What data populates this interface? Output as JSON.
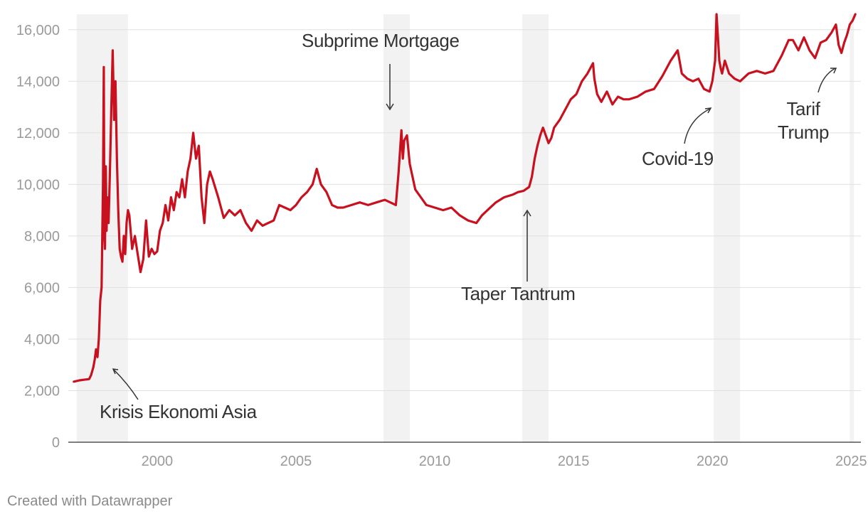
{
  "footer": {
    "credit": "Created with Datawrapper"
  },
  "colors": {
    "line": "#c8101e",
    "shade": "#f2f2f2",
    "grid": "#e0e0e0",
    "axis": "#333333",
    "tick_text": "#9a9a9a",
    "annotation_text": "#333333"
  },
  "chart_data": {
    "type": "line",
    "title": "",
    "xlabel": "",
    "ylabel": "",
    "xlim": [
      1996.8,
      2025.35
    ],
    "ylim": [
      0,
      16600
    ],
    "grid": true,
    "yticks": [
      0,
      2000,
      4000,
      6000,
      8000,
      10000,
      12000,
      14000,
      16000
    ],
    "ytick_labels": [
      "0",
      "2,000",
      "4,000",
      "6,000",
      "8,000",
      "10,000",
      "12,000",
      "14,000",
      "16,000"
    ],
    "xticks": [
      2000,
      2005,
      2010,
      2015,
      2020,
      2025
    ],
    "xtick_labels": [
      "2000",
      "2005",
      "2010",
      "2015",
      "2020",
      "2025"
    ],
    "shaded_periods": [
      [
        1997.1,
        1998.95
      ],
      [
        2008.15,
        2009.1
      ],
      [
        2013.15,
        2014.1
      ],
      [
        2020.05,
        2021.0
      ],
      [
        2024.95,
        2025.1
      ]
    ],
    "annotations": [
      {
        "text": "Krisis Ekonomi Asia",
        "x": 1998.0,
        "y": 1200
      },
      {
        "text": "Subprime Mortgage",
        "x": 2008.1,
        "y": 15750
      },
      {
        "text": "Taper Tantrum",
        "x": 2012.6,
        "y": 5600
      },
      {
        "text": "Covid-19",
        "x": 2019.3,
        "y": 10900
      },
      {
        "lines": [
          "Tarif",
          "Trump"
        ],
        "x": 2023.9,
        "y": 12700
      }
    ],
    "series": [
      {
        "x": [
          1997.0,
          1997.2,
          1997.4,
          1997.55,
          1997.62,
          1997.7,
          1997.75,
          1997.8,
          1997.85,
          1997.9,
          1997.95,
          1998.0,
          1998.03,
          1998.05,
          1998.08,
          1998.1,
          1998.12,
          1998.15,
          1998.18,
          1998.2,
          1998.25,
          1998.3,
          1998.35,
          1998.4,
          1998.45,
          1998.5,
          1998.55,
          1998.6,
          1998.65,
          1998.7,
          1998.75,
          1998.8,
          1998.85,
          1998.9,
          1998.95,
          1999.0,
          1999.1,
          1999.2,
          1999.3,
          1999.4,
          1999.5,
          1999.6,
          1999.7,
          1999.8,
          1999.9,
          2000.0,
          2000.1,
          2000.2,
          2000.3,
          2000.4,
          2000.5,
          2000.6,
          2000.7,
          2000.8,
          2000.9,
          2001.0,
          2001.1,
          2001.2,
          2001.3,
          2001.4,
          2001.5,
          2001.6,
          2001.7,
          2001.8,
          2001.9,
          2002.0,
          2002.2,
          2002.4,
          2002.6,
          2002.8,
          2003.0,
          2003.2,
          2003.4,
          2003.6,
          2003.8,
          2004.0,
          2004.2,
          2004.4,
          2004.6,
          2004.8,
          2005.0,
          2005.2,
          2005.4,
          2005.6,
          2005.75,
          2005.9,
          2006.1,
          2006.3,
          2006.5,
          2006.7,
          2007.0,
          2007.3,
          2007.6,
          2007.9,
          2008.2,
          2008.4,
          2008.6,
          2008.7,
          2008.8,
          2008.85,
          2008.9,
          2009.0,
          2009.1,
          2009.2,
          2009.3,
          2009.5,
          2009.7,
          2010.0,
          2010.3,
          2010.6,
          2010.9,
          2011.2,
          2011.5,
          2011.7,
          2011.9,
          2012.2,
          2012.5,
          2012.8,
          2013.0,
          2013.2,
          2013.4,
          2013.5,
          2013.6,
          2013.7,
          2013.8,
          2013.9,
          2014.0,
          2014.1,
          2014.2,
          2014.3,
          2014.5,
          2014.7,
          2014.9,
          2015.1,
          2015.3,
          2015.5,
          2015.7,
          2015.75,
          2015.85,
          2016.0,
          2016.2,
          2016.4,
          2016.6,
          2016.8,
          2017.0,
          2017.3,
          2017.6,
          2017.9,
          2018.2,
          2018.5,
          2018.75,
          2018.9,
          2019.1,
          2019.3,
          2019.5,
          2019.7,
          2019.9,
          2020.0,
          2020.1,
          2020.15,
          2020.2,
          2020.25,
          2020.3,
          2020.35,
          2020.45,
          2020.6,
          2020.8,
          2021.0,
          2021.3,
          2021.6,
          2021.9,
          2022.2,
          2022.5,
          2022.75,
          2022.9,
          2023.1,
          2023.3,
          2023.5,
          2023.7,
          2023.9,
          2024.1,
          2024.3,
          2024.45,
          2024.55,
          2024.65,
          2024.75,
          2024.85,
          2024.95,
          2025.05,
          2025.15
        ],
        "y": [
          2350,
          2400,
          2430,
          2450,
          2600,
          2900,
          3200,
          3600,
          3300,
          4000,
          5500,
          6000,
          8500,
          10000,
          14550,
          8000,
          7500,
          10700,
          8200,
          9500,
          8500,
          10500,
          13000,
          15200,
          12500,
          14000,
          11000,
          9000,
          7500,
          7200,
          7000,
          8000,
          7300,
          8500,
          9000,
          8800,
          7500,
          8000,
          7300,
          6600,
          7100,
          8600,
          7200,
          7500,
          7300,
          7400,
          8200,
          8500,
          9200,
          8600,
          9500,
          9000,
          9700,
          9500,
          10200,
          9500,
          10500,
          11000,
          12000,
          11000,
          11500,
          9500,
          8500,
          10000,
          10500,
          10200,
          9500,
          8700,
          9000,
          8800,
          9000,
          8500,
          8200,
          8600,
          8400,
          8500,
          8600,
          9200,
          9100,
          9000,
          9200,
          9500,
          9700,
          10000,
          10600,
          10000,
          9700,
          9200,
          9100,
          9100,
          9200,
          9300,
          9200,
          9300,
          9400,
          9300,
          9200,
          10500,
          12100,
          11000,
          11700,
          11900,
          10800,
          10300,
          9800,
          9500,
          9200,
          9100,
          9000,
          9100,
          8800,
          8600,
          8500,
          8800,
          9000,
          9300,
          9500,
          9600,
          9700,
          9750,
          9900,
          10300,
          11000,
          11500,
          11900,
          12200,
          11900,
          11600,
          11800,
          12200,
          12500,
          12900,
          13300,
          13500,
          14000,
          14300,
          14700,
          14100,
          13500,
          13200,
          13600,
          13100,
          13400,
          13300,
          13300,
          13400,
          13600,
          13700,
          14200,
          14800,
          15200,
          14300,
          14100,
          14000,
          14100,
          13700,
          13600,
          14000,
          14800,
          16600,
          15700,
          14800,
          14500,
          14300,
          14800,
          14300,
          14100,
          14000,
          14300,
          14400,
          14300,
          14400,
          15000,
          15600,
          15600,
          15200,
          15700,
          15200,
          14900,
          15500,
          15600,
          15900,
          16200,
          15400,
          15100,
          15500,
          15800,
          16200,
          16350,
          16600
        ]
      }
    ]
  }
}
